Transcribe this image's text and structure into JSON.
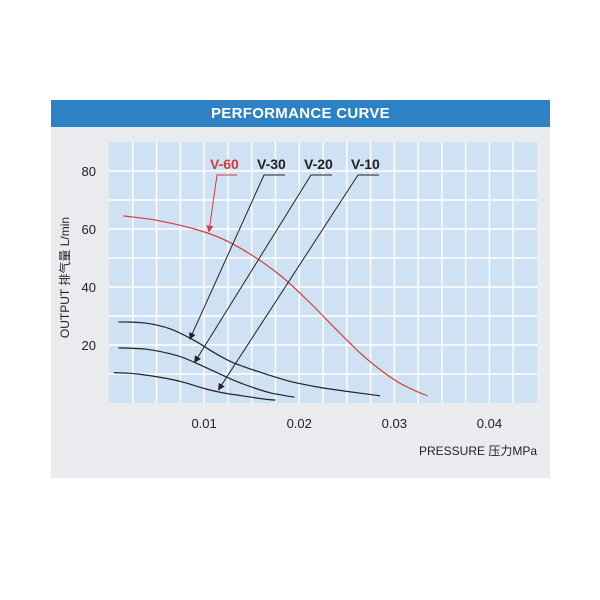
{
  "header": {
    "title": "PERFORMANCE CURVE"
  },
  "colors": {
    "banner": "#2d82c6",
    "plot_background": "#cfe2f3",
    "grid": "#ffffff",
    "highlight_curve": "#d83a3a",
    "curve": "#222222",
    "text": "#222222"
  },
  "chart_data": {
    "type": "line",
    "title": "PERFORMANCE CURVE",
    "xlabel": "PRESSURE 压力MPa",
    "ylabel": "OUTPUT 排气量 L/min",
    "xlim": [
      0,
      0.045
    ],
    "ylim": [
      0,
      90
    ],
    "x_ticks": [
      "0.01",
      "0.02",
      "0.03",
      "0.04"
    ],
    "x_tick_values": [
      0.01,
      0.02,
      0.03,
      0.04
    ],
    "y_ticks": [
      "20",
      "40",
      "60",
      "80"
    ],
    "y_tick_values": [
      20,
      40,
      60,
      80
    ],
    "grid": true,
    "series": [
      {
        "name": "V-60",
        "color": "#d83a3a",
        "x": [
          0.0015,
          0.005,
          0.009,
          0.012,
          0.015,
          0.018,
          0.021,
          0.024,
          0.027,
          0.03,
          0.032,
          0.0335
        ],
        "y": [
          64.5,
          63,
          60,
          56.5,
          51,
          44,
          35,
          25,
          15.5,
          8,
          4.5,
          2.5
        ]
      },
      {
        "name": "V-30",
        "color": "#222222",
        "x": [
          0.001,
          0.004,
          0.0065,
          0.009,
          0.011,
          0.013,
          0.016,
          0.019,
          0.022,
          0.025,
          0.0285
        ],
        "y": [
          28,
          27.5,
          25.5,
          21.5,
          17.5,
          14,
          10.5,
          7.5,
          5.5,
          4,
          2.5
        ]
      },
      {
        "name": "V-20",
        "color": "#222222",
        "x": [
          0.001,
          0.004,
          0.007,
          0.009,
          0.011,
          0.013,
          0.015,
          0.017,
          0.0195
        ],
        "y": [
          19,
          18.5,
          16.5,
          14,
          11,
          8,
          5.5,
          3.5,
          2
        ]
      },
      {
        "name": "V-10",
        "color": "#222222",
        "x": [
          0.0005,
          0.003,
          0.006,
          0.008,
          0.01,
          0.012,
          0.014,
          0.016,
          0.0175
        ],
        "y": [
          10.5,
          10,
          8.5,
          7,
          5,
          3.5,
          2.5,
          1.5,
          1
        ]
      }
    ],
    "annotations": [
      {
        "text": "V-60",
        "color": "#d83a3a",
        "points_to": [
          0.0105,
          59
        ]
      },
      {
        "text": "V-30",
        "color": "#222222",
        "points_to": [
          0.0085,
          22
        ]
      },
      {
        "text": "V-20",
        "color": "#222222",
        "points_to": [
          0.009,
          14
        ]
      },
      {
        "text": "V-10",
        "color": "#222222",
        "points_to": [
          0.0115,
          4.5
        ]
      }
    ]
  }
}
